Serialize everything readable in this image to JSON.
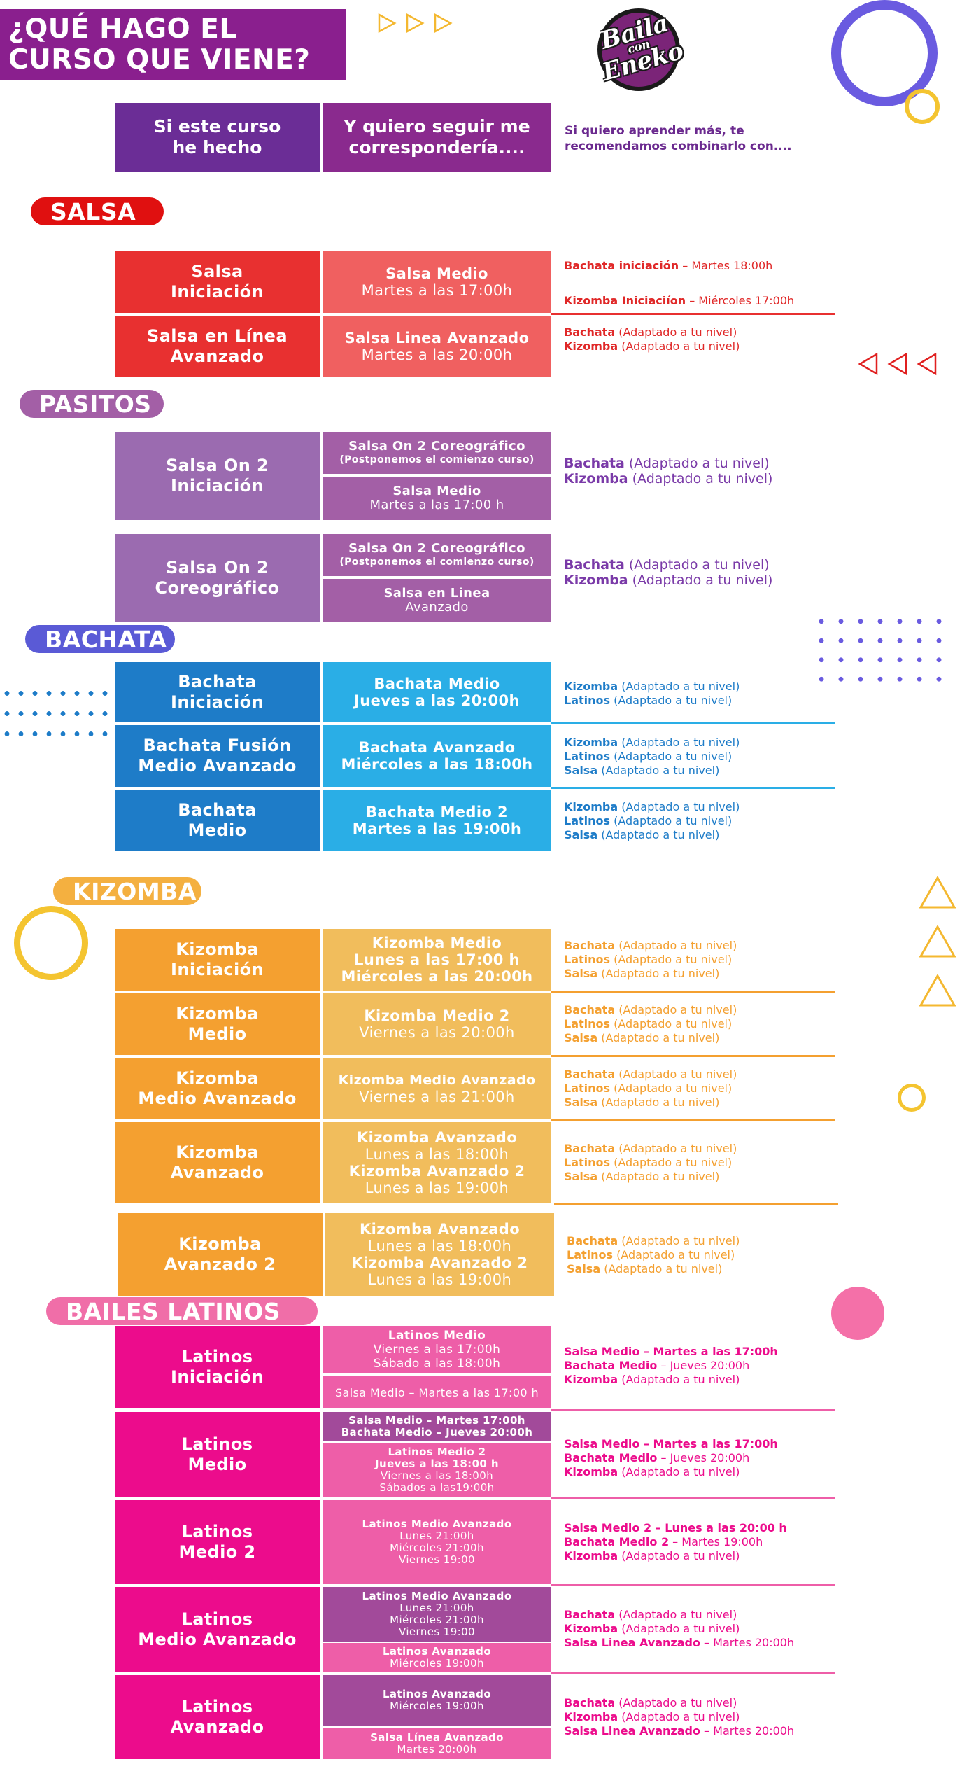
{
  "title_lines": [
    "¿QUÉ HAGO EL",
    "CURSO QUE VIENE?"
  ],
  "logo": {
    "line1": "Baila",
    "line2": "con",
    "line3": "Eneko"
  },
  "header": {
    "col1": [
      "Si este curso",
      "he hecho"
    ],
    "col2": [
      "Y quiero seguir me",
      "correspondería...."
    ],
    "col3": [
      "Si quiero aprender más, te",
      "recomendamos combinarlo con...."
    ]
  },
  "colors": {
    "salsa": "#e83030",
    "salsa_light": "#f06060",
    "pasitos": "#9b6bb0",
    "pasitos_light": "#a35fa6",
    "bachata": "#1e7cc8",
    "bachata_light": "#2aaee6",
    "kizomba": "#f4a030",
    "kizomba_light": "#f1bd5c",
    "latinos": "#ec0c8c",
    "latinos_light": "#ee5ea8",
    "latinos_purple": "#a24a9a"
  },
  "sections": {
    "salsa": {
      "name": "SALSA",
      "rows": [
        {
          "course": [
            "Salsa",
            "Iniciación"
          ],
          "next": [
            "Salsa Medio",
            "Martes a las 17:00h"
          ],
          "rec": [
            {
              "b": "Bachata iniciación",
              "n": " – Martes 18:00h"
            },
            {
              "b": "Kizomba Iniciaciíon",
              "n": " – Miércoles 17:00h"
            }
          ]
        },
        {
          "course": [
            "Salsa en Línea",
            "Avanzado"
          ],
          "next": [
            "Salsa Linea Avanzado",
            "Martes a las 20:00h"
          ],
          "rec": [
            {
              "b": "Bachata",
              "n": " (Adaptado a tu nivel)"
            },
            {
              "b": "Kizomba",
              "n": " (Adaptado a tu nivel)"
            }
          ]
        }
      ]
    },
    "pasitos": {
      "name": "PASITOS",
      "rows": [
        {
          "course": [
            "Salsa On 2",
            "Iniciación"
          ],
          "next_top": [
            "Salsa On 2 Coreográfico",
            "(Postponemos el comienzo curso)"
          ],
          "next_bottom": [
            "Salsa Medio",
            "Martes a las 17:00 h"
          ],
          "rec": [
            {
              "b": "Bachata",
              "n": " (Adaptado a tu nivel)"
            },
            {
              "b": "Kizomba",
              "n": " (Adaptado a tu nivel)"
            }
          ]
        },
        {
          "course": [
            "Salsa On 2",
            "Coreográfico"
          ],
          "next_top": [
            "Salsa On 2 Coreográfico",
            "(Postponemos el comienzo curso)"
          ],
          "next_bottom": [
            "Salsa en Linea",
            "Avanzado"
          ],
          "rec": [
            {
              "b": "Bachata",
              "n": " (Adaptado a tu nivel)"
            },
            {
              "b": "Kizomba",
              "n": " (Adaptado a tu nivel)"
            }
          ]
        }
      ]
    },
    "bachata": {
      "name": "BACHATA",
      "rows": [
        {
          "course": [
            "Bachata",
            "Iniciación"
          ],
          "next": [
            "Bachata Medio",
            "Jueves a las 20:00h"
          ],
          "rec": [
            {
              "b": "Kizomba",
              "n": " (Adaptado a tu nivel)"
            },
            {
              "b": "Latinos",
              "n": " (Adaptado a tu nivel)"
            }
          ]
        },
        {
          "course": [
            "Bachata Fusión",
            "Medio Avanzado"
          ],
          "next": [
            "Bachata Avanzado",
            "Miércoles a las 18:00h"
          ],
          "rec": [
            {
              "b": "Kizomba",
              "n": " (Adaptado a tu nivel)"
            },
            {
              "b": "Latinos",
              "n": " (Adaptado a tu nivel)"
            },
            {
              "b": "Salsa",
              "n": " (Adaptado a tu nivel)"
            }
          ]
        },
        {
          "course": [
            "Bachata",
            "Medio"
          ],
          "next": [
            "Bachata Medio 2",
            "Martes a las 19:00h"
          ],
          "rec": [
            {
              "b": "Kizomba",
              "n": " (Adaptado a tu nivel)"
            },
            {
              "b": "Latinos",
              "n": " (Adaptado a tu nivel)"
            },
            {
              "b": "Salsa",
              "n": " (Adaptado a tu nivel)"
            }
          ]
        }
      ]
    },
    "kizomba": {
      "name": "KIZOMBA",
      "rows": [
        {
          "course": [
            "Kizomba",
            "Iniciación"
          ],
          "next": [
            "Kizomba Medio",
            "Lunes a las 17:00 h",
            "Miércoles a las 20:00h"
          ],
          "rec": [
            {
              "b": "Bachata",
              "n": " (Adaptado a tu nivel)"
            },
            {
              "b": "Latinos",
              "n": " (Adaptado a tu nivel)"
            },
            {
              "b": "Salsa",
              "n": " (Adaptado a tu nivel)"
            }
          ]
        },
        {
          "course": [
            "Kizomba",
            "Medio"
          ],
          "next": [
            "Kizomba Medio 2",
            "Viernes a las 20:00h"
          ],
          "rec": [
            {
              "b": "Bachata",
              "n": " (Adaptado a tu nivel)"
            },
            {
              "b": "Latinos",
              "n": " (Adaptado a tu nivel)"
            },
            {
              "b": "Salsa",
              "n": " (Adaptado a tu nivel)"
            }
          ]
        },
        {
          "course": [
            "Kizomba",
            "Medio Avanzado"
          ],
          "next": [
            "Kizomba Medio Avanzado",
            "Viernes a las 21:00h"
          ],
          "rec": [
            {
              "b": "Bachata",
              "n": " (Adaptado a tu nivel)"
            },
            {
              "b": "Latinos",
              "n": " (Adaptado a tu nivel)"
            },
            {
              "b": "Salsa",
              "n": " (Adaptado a tu nivel)"
            }
          ]
        },
        {
          "course": [
            "Kizomba",
            "Avanzado"
          ],
          "next": [
            "Kizomba Avanzado",
            "Lunes a las 18:00h",
            "Kizomba Avanzado 2",
            "Lunes a las 19:00h"
          ],
          "rec": [
            {
              "b": "Bachata",
              "n": " (Adaptado a tu nivel)"
            },
            {
              "b": "Latinos",
              "n": " (Adaptado a tu nivel)"
            },
            {
              "b": "Salsa",
              "n": " (Adaptado a tu nivel)"
            }
          ]
        },
        {
          "course": [
            "Kizomba",
            "Avanzado 2"
          ],
          "next": [
            "Kizomba Avanzado",
            "Lunes a las 18:00h",
            "Kizomba Avanzado 2",
            "Lunes a las 19:00h"
          ],
          "rec": [
            {
              "b": "Bachata",
              "n": " (Adaptado a tu nivel)"
            },
            {
              "b": "Latinos",
              "n": " (Adaptado a tu nivel)"
            },
            {
              "b": "Salsa",
              "n": " (Adaptado a tu nivel)"
            }
          ]
        }
      ]
    },
    "latinos": {
      "name": "BAILES LATINOS",
      "rows": [
        {
          "course": [
            "Latinos",
            "Iniciación"
          ],
          "next_top": [
            "Latinos Medio",
            "Viernes a las 17:00h",
            "Sábado a las 18:00h"
          ],
          "next_bottom": [
            "Salsa Medio – Martes a las 17:00 h"
          ],
          "rec": [
            {
              "b": "Salsa Medio – Martes a las 17:00h",
              "n": ""
            },
            {
              "b": "Bachata Medio",
              "n": " – Jueves 20:00h"
            },
            {
              "b": "Kizomba",
              "n": " (Adaptado a tu nivel)"
            }
          ]
        },
        {
          "course": [
            "Latinos",
            "Medio"
          ],
          "next_top": [
            "Salsa Medio – Martes 17:00h",
            "Bachata Medio – Jueves 20:00h"
          ],
          "next_bottom": [
            "Latinos Medio 2",
            "Jueves a las 18:00 h",
            "Viernes a las 18:00h",
            "Sábados a las19:00h"
          ],
          "rec": [
            {
              "b": "Salsa Medio – Martes a las 17:00h",
              "n": ""
            },
            {
              "b": "Bachata Medio",
              "n": " – Jueves 20:00h"
            },
            {
              "b": "Kizomba",
              "n": " (Adaptado a tu nivel)"
            }
          ]
        },
        {
          "course": [
            "Latinos",
            "Medio 2"
          ],
          "next": [
            "Latinos Medio Avanzado",
            "Lunes 21:00h",
            "Miércoles 21:00h",
            "Viernes 19:00"
          ],
          "rec": [
            {
              "b": "Salsa Medio 2 – Lunes a las 20:00 h",
              "n": ""
            },
            {
              "b": "Bachata Medio 2",
              "n": " – Martes 19:00h"
            },
            {
              "b": "Kizomba",
              "n": " (Adaptado a tu nivel)"
            }
          ]
        },
        {
          "course": [
            "Latinos",
            "Medio Avanzado"
          ],
          "next_top": [
            "Latinos Medio Avanzado",
            "Lunes 21:00h",
            "Miércoles 21:00h",
            "Viernes 19:00"
          ],
          "next_bottom": [
            "Latinos Avanzado",
            "Miércoles 19:00h"
          ],
          "rec": [
            {
              "b": "Bachata",
              "n": " (Adaptado a tu nivel)"
            },
            {
              "b": "Kizomba",
              "n": " (Adaptado a tu nivel)"
            },
            {
              "b": "Salsa Linea Avanzado",
              "n": " – Martes 20:00h"
            }
          ]
        },
        {
          "course": [
            "Latinos",
            "Avanzado"
          ],
          "next_top": [
            "Latinos Avanzado",
            "Miércoles 19:00h"
          ],
          "next_bottom": [
            "Salsa Línea Avanzado",
            "Martes 20:00h"
          ],
          "rec": [
            {
              "b": "Bachata",
              "n": " (Adaptado a tu nivel)"
            },
            {
              "b": "Kizomba",
              "n": " (Adaptado a tu nivel)"
            },
            {
              "b": "Salsa Linea Avanzado",
              "n": " – Martes 20:00h"
            }
          ]
        }
      ]
    }
  }
}
